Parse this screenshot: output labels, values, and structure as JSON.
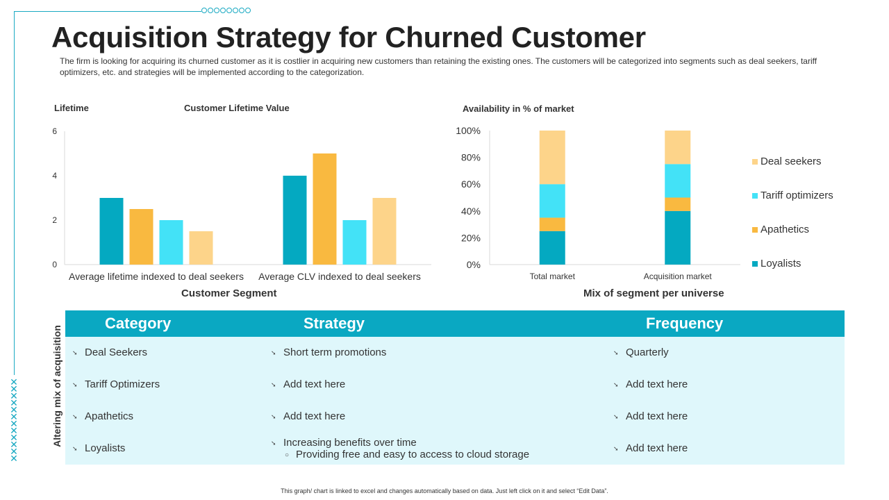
{
  "title": "Acquisition Strategy for Churned Customer",
  "subtitle": "The firm is looking for acquiring its churned customer as it is costlier in acquiring new customers than retaining the existing ones. The customers will be categorized into segments such as deal seekers, tariff optimizers, etc. and strategies will be implemented according to the categorization.",
  "colors": {
    "accent": "#0aa8c2",
    "loyalists": "#04a9c1",
    "apathetics": "#f9b940",
    "tariff_optimizers": "#43e2f7",
    "deal_seekers": "#fdd48a",
    "table_bg": "#dff7fb"
  },
  "chart_data": [
    {
      "type": "bar",
      "title": "Customer Lifetime Value",
      "ylabel": "Lifetime",
      "xlabel": "Customer Segment",
      "categories": [
        "Average lifetime indexed to deal seekers",
        "Average CLV indexed to deal seekers"
      ],
      "ylim": [
        0,
        6
      ],
      "yticks": [
        0,
        2,
        4,
        6
      ],
      "series": [
        {
          "name": "Loyalists",
          "values": [
            3,
            4
          ]
        },
        {
          "name": "Apathetics",
          "values": [
            2.5,
            5
          ]
        },
        {
          "name": "Tariff optimizers",
          "values": [
            2,
            2
          ]
        },
        {
          "name": "Deal seekers",
          "values": [
            1.5,
            3
          ]
        }
      ]
    },
    {
      "type": "bar",
      "stacked": true,
      "title": "Availability in % of market",
      "xlabel": "Mix of segment per universe",
      "categories": [
        "Total market",
        "Acquisition market"
      ],
      "ylim": [
        0,
        100
      ],
      "yticks": [
        "0%",
        "20%",
        "40%",
        "60%",
        "80%",
        "100%"
      ],
      "series": [
        {
          "name": "Loyalists",
          "values": [
            25,
            40
          ]
        },
        {
          "name": "Apathetics",
          "values": [
            10,
            10
          ]
        },
        {
          "name": "Tariff optimizers",
          "values": [
            25,
            25
          ]
        },
        {
          "name": "Deal seekers",
          "values": [
            40,
            25
          ]
        }
      ],
      "legend": [
        "Deal seekers",
        "Tariff optimizers",
        "Apathetics",
        "Loyalists"
      ],
      "legend_position": "right"
    }
  ],
  "table": {
    "side_label": "Altering mix of acquisition",
    "headers": [
      "Category",
      "Strategy",
      "Frequency"
    ],
    "rows": [
      {
        "category": "Deal Seekers",
        "strategy": "Short term promotions",
        "frequency": "Quarterly"
      },
      {
        "category": "Tariff Optimizers",
        "strategy": "Add text here",
        "frequency": "Add text here"
      },
      {
        "category": "Apathetics",
        "strategy": "Add text here",
        "frequency": "Add text here"
      },
      {
        "category": "Loyalists",
        "strategy": "Increasing benefits over time",
        "strategy_sub": "Providing free and easy to access to cloud storage",
        "frequency": "Add text here"
      }
    ]
  },
  "footer": "This graph/ chart is linked to excel and changes automatically based on data. Just left click on it and select “Edit Data”."
}
